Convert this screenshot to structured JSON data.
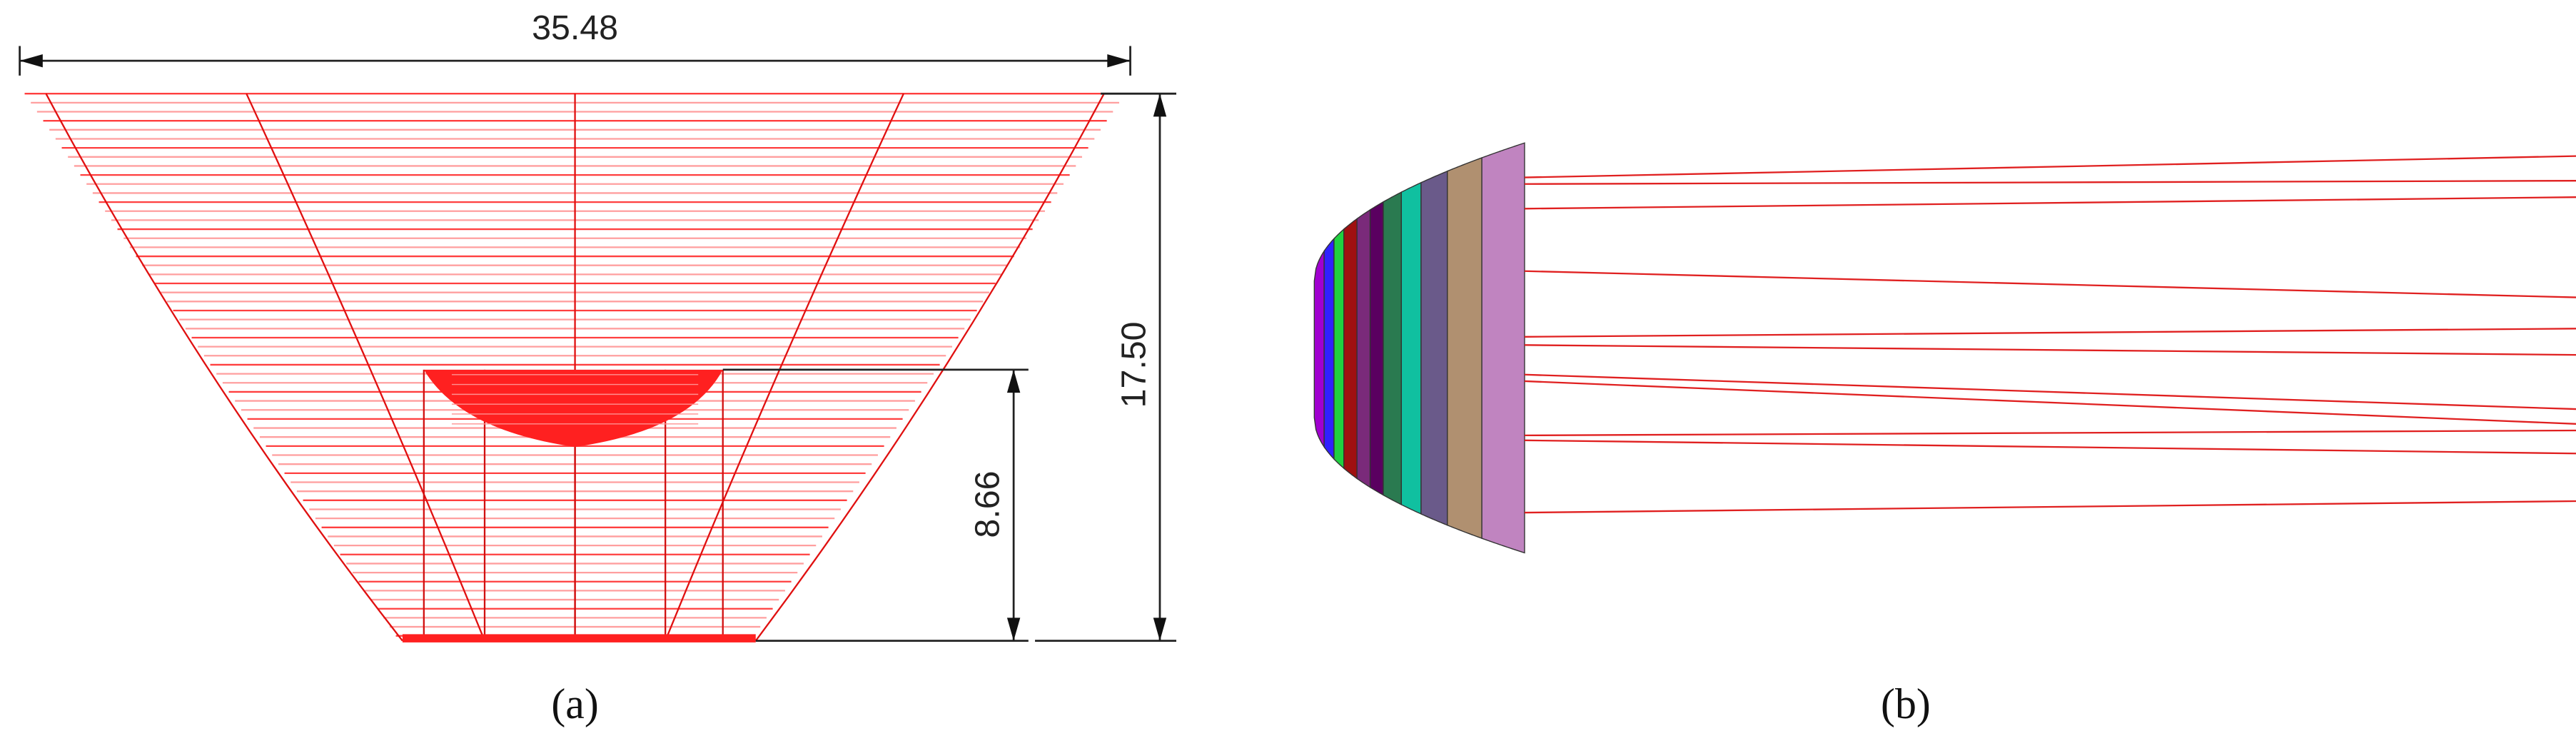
{
  "panels": [
    {
      "caption": "(a)",
      "dimensions": {
        "width": "35.48",
        "height": "17.50",
        "inner_height": "8.66"
      }
    },
    {
      "caption": "(b)"
    }
  ]
}
